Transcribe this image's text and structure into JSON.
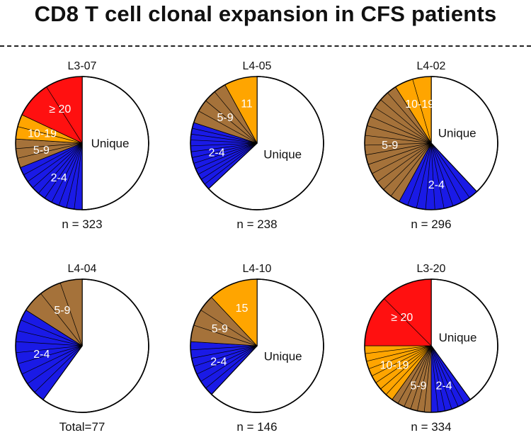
{
  "title": "CD8 T cell clonal expansion in CFS patients",
  "colors": {
    "unique": "#ffffff",
    "2-4": "#1a1ae6",
    "5-9": "#a5723a",
    "10-19": "#ffa500",
    "11": "#ffa500",
    "15": "#ffa500",
    "≥ 20": "#ff1010"
  },
  "chart_data": [
    {
      "type": "pie",
      "title": "L3-07",
      "n_label": "n = 323",
      "slices": [
        {
          "label": "Unique",
          "value": 0.5,
          "color_key": "unique"
        },
        {
          "label": "2-4",
          "value": 0.19,
          "color_key": "2-4"
        },
        {
          "label": "5-9",
          "value": 0.07,
          "color_key": "5-9"
        },
        {
          "label": "10-19",
          "value": 0.06,
          "color_key": "10-19"
        },
        {
          "label": "≥ 20",
          "value": 0.18,
          "color_key": "≥ 20"
        }
      ]
    },
    {
      "type": "pie",
      "title": "L4-05",
      "n_label": "n = 238",
      "slices": [
        {
          "label": "Unique",
          "value": 0.63,
          "color_key": "unique"
        },
        {
          "label": "2-4",
          "value": 0.17,
          "color_key": "2-4"
        },
        {
          "label": "5-9",
          "value": 0.12,
          "color_key": "5-9"
        },
        {
          "label": "11",
          "value": 0.08,
          "color_key": "11"
        }
      ]
    },
    {
      "type": "pie",
      "title": "L4-02",
      "n_label": "n = 296",
      "slices": [
        {
          "label": "Unique",
          "value": 0.38,
          "color_key": "unique"
        },
        {
          "label": "2-4",
          "value": 0.2,
          "color_key": "2-4"
        },
        {
          "label": "5-9",
          "value": 0.33,
          "color_key": "5-9"
        },
        {
          "label": "10-19",
          "value": 0.09,
          "color_key": "10-19"
        }
      ]
    },
    {
      "type": "pie",
      "title": "L4-04",
      "n_label": "Total=77",
      "slices": [
        {
          "label": "",
          "value": 0.6,
          "color_key": "unique"
        },
        {
          "label": "2-4",
          "value": 0.24,
          "color_key": "2-4"
        },
        {
          "label": "5-9",
          "value": 0.16,
          "color_key": "5-9"
        }
      ]
    },
    {
      "type": "pie",
      "title": "L4-10",
      "n_label": "n = 146",
      "slices": [
        {
          "label": "Unique",
          "value": 0.62,
          "color_key": "unique"
        },
        {
          "label": "2-4",
          "value": 0.14,
          "color_key": "2-4"
        },
        {
          "label": "5-9",
          "value": 0.12,
          "color_key": "5-9"
        },
        {
          "label": "15",
          "value": 0.12,
          "color_key": "15"
        }
      ]
    },
    {
      "type": "pie",
      "title": "L3-20",
      "n_label": "n = 334",
      "slices": [
        {
          "label": "Unique",
          "value": 0.4,
          "color_key": "unique"
        },
        {
          "label": "2-4",
          "value": 0.1,
          "color_key": "2-4"
        },
        {
          "label": "5-9",
          "value": 0.1,
          "color_key": "5-9"
        },
        {
          "label": "10-19",
          "value": 0.15,
          "color_key": "10-19"
        },
        {
          "label": "≥ 20",
          "value": 0.25,
          "color_key": "≥ 20"
        }
      ]
    }
  ]
}
